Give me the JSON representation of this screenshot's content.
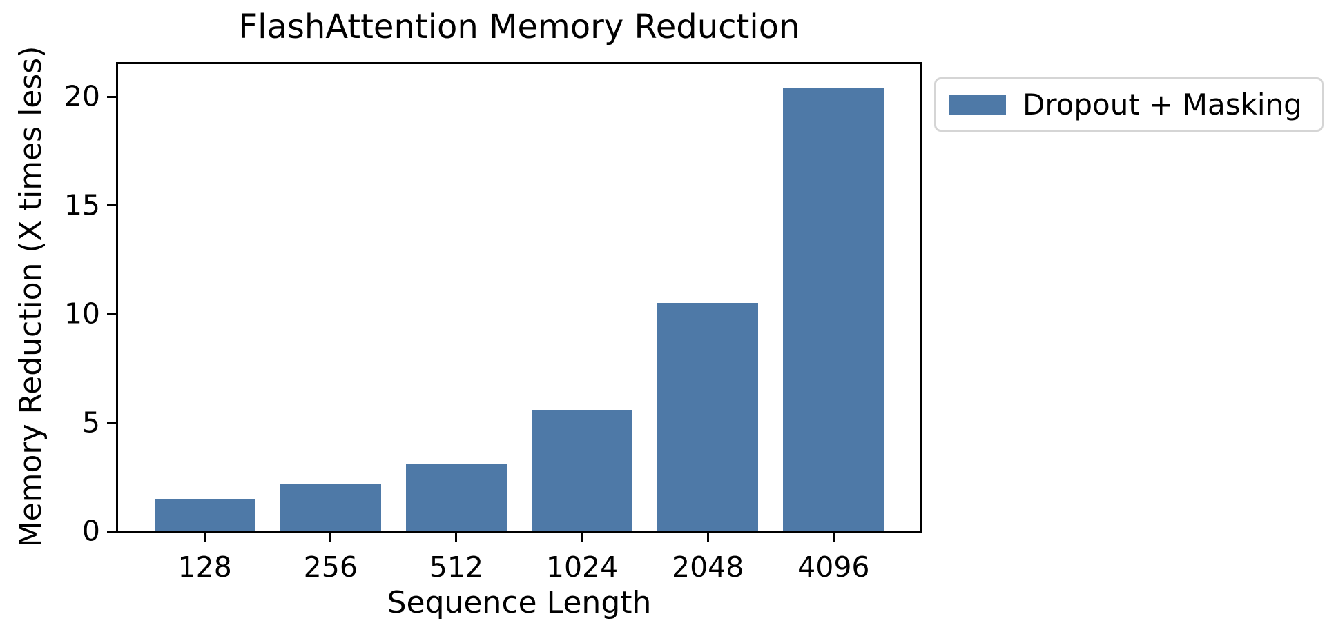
{
  "figure": {
    "background": "#ffffff",
    "text_color": "#000000"
  },
  "chart_data": {
    "type": "bar",
    "title": "FlashAttention Memory Reduction",
    "xlabel": "Sequence Length",
    "ylabel": "Memory Reduction (X times less)",
    "categories": [
      "128",
      "256",
      "512",
      "1024",
      "2048",
      "4096"
    ],
    "series": [
      {
        "name": "Dropout + Masking",
        "color": "#4E79A7",
        "values": [
          1.5,
          2.2,
          3.1,
          5.6,
          10.5,
          20.4
        ]
      }
    ],
    "ylim": [
      0,
      21.5
    ],
    "yticks": [
      0,
      5,
      10,
      15,
      20
    ],
    "grid": false,
    "legend_position": "outside-upper-right",
    "legend_border_color": "#d5d5d5",
    "axis_color": "#000000"
  }
}
